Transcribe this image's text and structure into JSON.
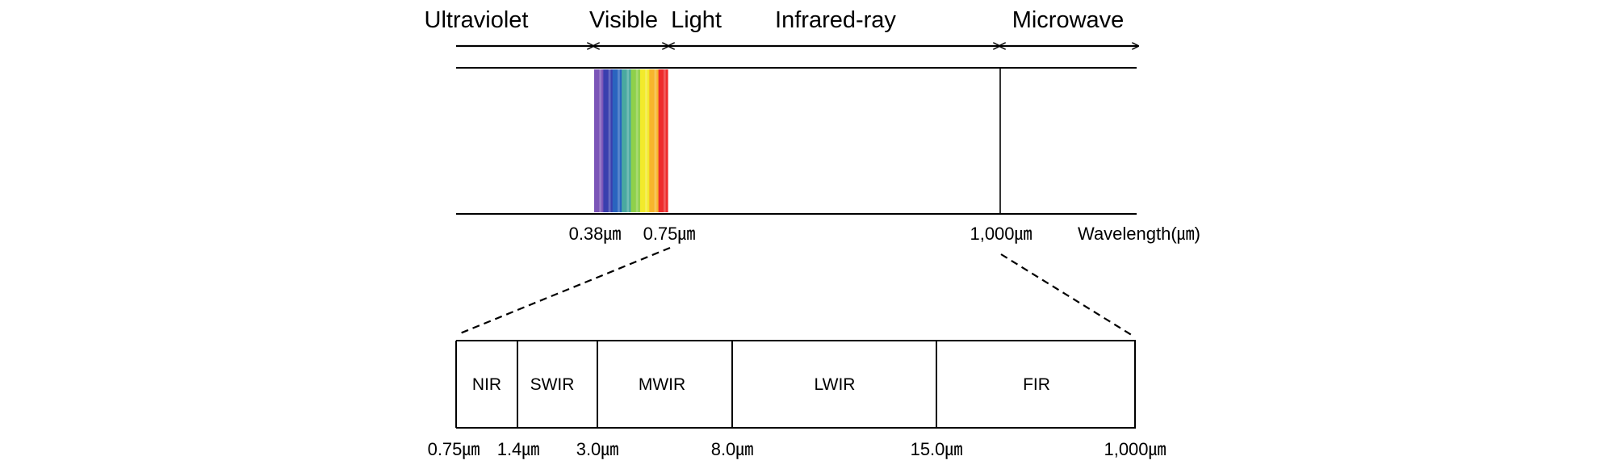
{
  "spectrum": {
    "regions": [
      {
        "id": "uv",
        "label": "Ultraviolet"
      },
      {
        "id": "visible",
        "label": "Visible  Light"
      },
      {
        "id": "ir",
        "label": "Infrared-ray"
      },
      {
        "id": "mw",
        "label": "Microwave"
      }
    ],
    "axis_ticks": [
      {
        "id": "t038",
        "label": "0.38㎛"
      },
      {
        "id": "t075",
        "label": "0.75㎛"
      },
      {
        "id": "t1000",
        "label": "1,000㎛"
      }
    ],
    "axis_label": "Wavelength(㎛)",
    "visible_colors": [
      "#7b55b8",
      "#3a3fae",
      "#2a64bf",
      "#4aa9a0",
      "#8fd04a",
      "#f2ea2b",
      "#f7b52c",
      "#ee2b2b"
    ]
  },
  "infrared_bands": {
    "bands": [
      {
        "id": "nir",
        "label": "NIR"
      },
      {
        "id": "swir",
        "label": "SWIR"
      },
      {
        "id": "mwir",
        "label": "MWIR"
      },
      {
        "id": "lwir",
        "label": "LWIR"
      },
      {
        "id": "fir",
        "label": "FIR"
      }
    ],
    "boundaries": [
      {
        "id": "b075",
        "label": "0.75㎛"
      },
      {
        "id": "b14",
        "label": "1.4㎛"
      },
      {
        "id": "b30",
        "label": "3.0㎛"
      },
      {
        "id": "b80",
        "label": "8.0㎛"
      },
      {
        "id": "b150",
        "label": "15.0㎛"
      },
      {
        "id": "b1000",
        "label": "1,000㎛"
      }
    ]
  }
}
